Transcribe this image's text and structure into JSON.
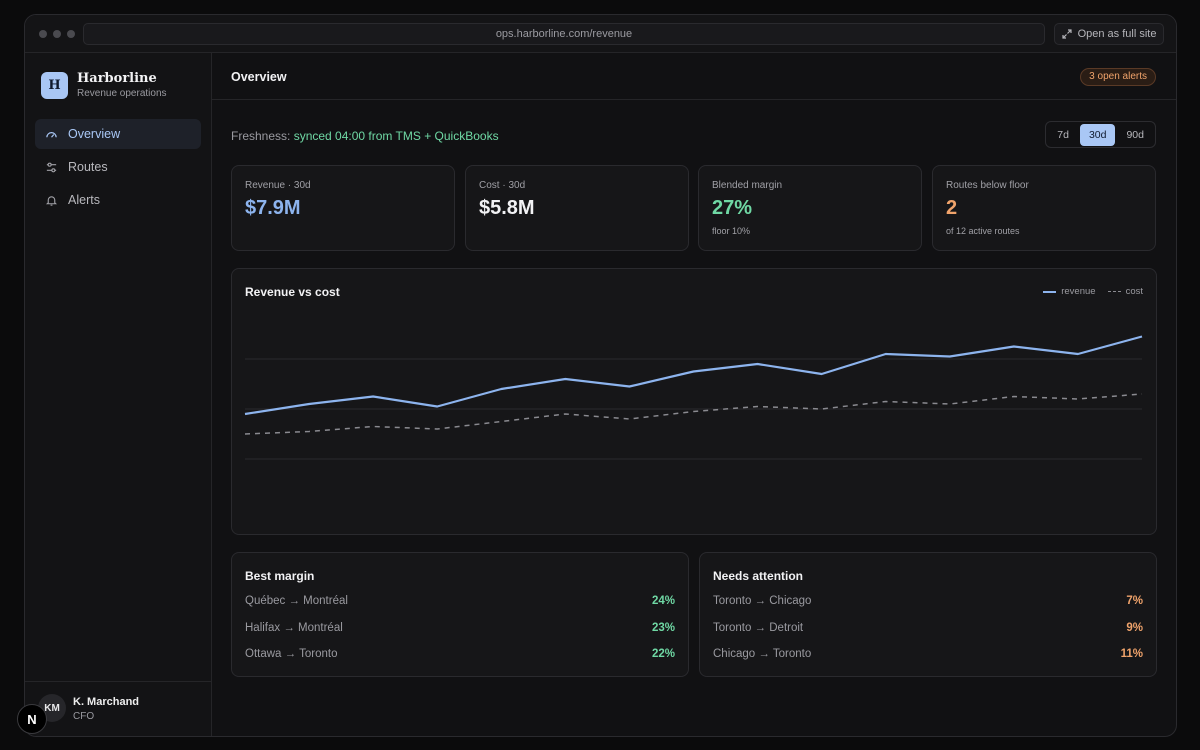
{
  "browser": {
    "url": "ops.harborline.com/revenue",
    "open_full_site": "Open as full site"
  },
  "brand": {
    "logo_letter": "H",
    "name": "Harborline",
    "subtitle": "Revenue operations",
    "accent_color": "#a9c7f5"
  },
  "nav": {
    "items": [
      {
        "label": "Overview",
        "icon": "gauge-icon",
        "active": true
      },
      {
        "label": "Routes",
        "icon": "sliders-icon",
        "active": false
      },
      {
        "label": "Alerts",
        "icon": "bell-icon",
        "active": false
      }
    ]
  },
  "user": {
    "initials": "KM",
    "name": "K. Marchand",
    "role": "CFO"
  },
  "header": {
    "title": "Overview",
    "alerts_badge": "3 open alerts"
  },
  "freshness": {
    "label": "Freshness:",
    "status": "synced 04:00 from TMS + QuickBooks"
  },
  "range": {
    "options": [
      "7d",
      "30d",
      "90d"
    ],
    "selected": "30d"
  },
  "stats": [
    {
      "label": "Revenue · 30d",
      "value": "$7.9M",
      "sub": "",
      "color": "#8db4ee"
    },
    {
      "label": "Cost · 30d",
      "value": "$5.8M",
      "sub": "",
      "color": "#f2f2f4"
    },
    {
      "label": "Blended margin",
      "value": "27%",
      "sub": "floor 10%",
      "color": "#6fd8a4"
    },
    {
      "label": "Routes below floor",
      "value": "2",
      "sub": "of 12 active routes",
      "color": "#f0a36b"
    }
  ],
  "chart": {
    "title": "Revenue vs cost",
    "legend": [
      "revenue",
      "cost"
    ]
  },
  "chart_data": {
    "type": "line",
    "title": "Revenue vs cost",
    "xlabel": "",
    "ylabel": "",
    "grid": true,
    "legend_position": "top-right",
    "ylim": [
      0,
      4
    ],
    "x": [
      1,
      2,
      3,
      4,
      5,
      6,
      7,
      8,
      9,
      10,
      11,
      12,
      13,
      14,
      15
    ],
    "series": [
      {
        "name": "revenue",
        "color": "#8db4ee",
        "dashed": false,
        "values": [
          1.9,
          2.1,
          2.25,
          2.05,
          2.4,
          2.6,
          2.45,
          2.75,
          2.9,
          2.7,
          3.1,
          3.05,
          3.25,
          3.1,
          3.45
        ]
      },
      {
        "name": "cost",
        "color": "#8a8a90",
        "dashed": true,
        "values": [
          1.5,
          1.55,
          1.65,
          1.6,
          1.75,
          1.9,
          1.8,
          1.95,
          2.05,
          2.0,
          2.15,
          2.1,
          2.25,
          2.2,
          2.3
        ]
      }
    ]
  },
  "best_margin": {
    "title": "Best margin",
    "rows": [
      {
        "route": "Québec → Montréal",
        "value": "24%"
      },
      {
        "route": "Halifax → Montréal",
        "value": "23%"
      },
      {
        "route": "Ottawa → Toronto",
        "value": "22%"
      }
    ],
    "color": "#6fd8a4"
  },
  "needs_attention": {
    "title": "Needs attention",
    "rows": [
      {
        "route": "Toronto → Chicago",
        "value": "7%"
      },
      {
        "route": "Toronto → Detroit",
        "value": "9%"
      },
      {
        "route": "Chicago → Toronto",
        "value": "11%"
      }
    ],
    "color": "#f0a36b"
  },
  "overlay": {
    "badge_letter": "N"
  }
}
